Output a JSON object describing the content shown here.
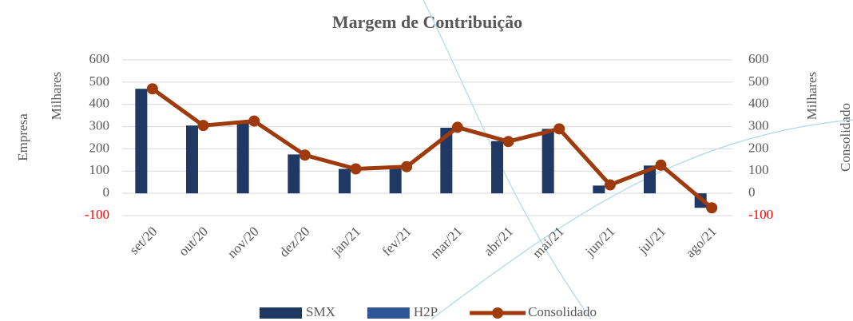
{
  "chart_data": {
    "type": "bar-line",
    "title": "Margem de Contribuição",
    "y_label_outer": "Empresa",
    "y_label": "Milhares",
    "y2_label": "Milhares",
    "y2_label_outer": "Consolidado",
    "categories": [
      "set/20",
      "out/20",
      "nov/20",
      "dez/20",
      "jan/21",
      "fev/21",
      "mar/21",
      "abr/21",
      "mai/21",
      "jun/21",
      "jul/21",
      "ago/21"
    ],
    "series": [
      {
        "name": "SMX",
        "type": "bar",
        "color": "#1f3864",
        "values": [
          470,
          305,
          325,
          175,
          110,
          120,
          295,
          235,
          290,
          35,
          125,
          -65
        ]
      },
      {
        "name": "H2P",
        "type": "bar",
        "color": "#2f5597",
        "values": [
          0,
          0,
          0,
          0,
          0,
          0,
          0,
          0,
          0,
          0,
          0,
          0
        ]
      },
      {
        "name": "Consolidado",
        "type": "line",
        "axis": "y2",
        "color": "#9e3a0c",
        "values": [
          470,
          305,
          325,
          172,
          110,
          120,
          297,
          233,
          290,
          38,
          127,
          -65
        ]
      }
    ],
    "ylim": [
      -100,
      600
    ],
    "yticks": [
      -100,
      0,
      100,
      200,
      300,
      400,
      500,
      600
    ],
    "y2lim": [
      -100,
      600
    ],
    "y2ticks": [
      -100,
      0,
      100,
      200,
      300,
      400,
      500,
      600
    ],
    "negative_tick_color": "#ff0000",
    "grid": true,
    "legend": "bottom"
  }
}
